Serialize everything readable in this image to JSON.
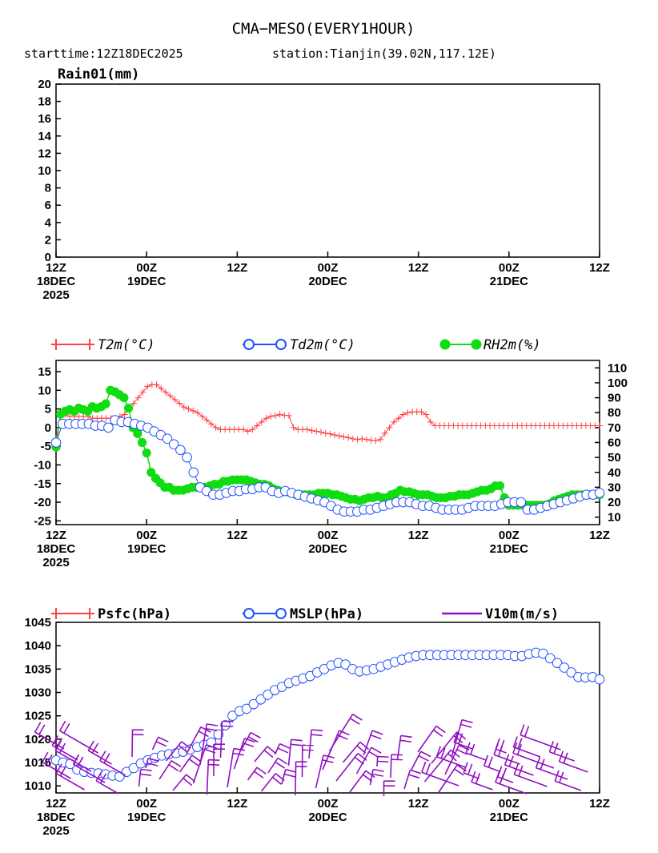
{
  "header": {
    "title": "CMA−MESO(EVERY1HOUR)",
    "subtitle_start": "starttime:12Z18DEC2025",
    "subtitle_station": "station:Tianjin(39.02N,117.12E)"
  },
  "colors": {
    "t2m": "#ff4040",
    "td2m": "#2050ff",
    "rh2m": "#10dd10",
    "psfc": "#ff4040",
    "mslp": "#2050ff",
    "wind": "#9010c0",
    "axis": "#000000"
  },
  "time_axis": {
    "hours": 72,
    "ticks": [
      {
        "h": 0,
        "l1": "12Z",
        "l2": "18DEC",
        "l3": "2025"
      },
      {
        "h": 12,
        "l1": "00Z",
        "l2": "19DEC",
        "l3": ""
      },
      {
        "h": 24,
        "l1": "12Z",
        "l2": "",
        "l3": ""
      },
      {
        "h": 36,
        "l1": "00Z",
        "l2": "20DEC",
        "l3": ""
      },
      {
        "h": 48,
        "l1": "12Z",
        "l2": "",
        "l3": ""
      },
      {
        "h": 60,
        "l1": "00Z",
        "l2": "21DEC",
        "l3": ""
      },
      {
        "h": 72,
        "l1": "12Z",
        "l2": "",
        "l3": ""
      }
    ]
  },
  "chart_data": [
    {
      "type": "line",
      "id": "rain",
      "title": "Rain01(mm)",
      "ylim": [
        0,
        20
      ],
      "yticks": [
        0,
        2,
        4,
        6,
        8,
        10,
        12,
        14,
        16,
        18,
        20
      ],
      "series": []
    },
    {
      "type": "line",
      "id": "temp",
      "ylim": [
        -26,
        18
      ],
      "yticks": [
        -25,
        -20,
        -15,
        -10,
        -5,
        0,
        5,
        10,
        15
      ],
      "y2lim": [
        5,
        115
      ],
      "y2ticks": [
        10,
        20,
        30,
        40,
        50,
        60,
        70,
        80,
        90,
        100,
        110
      ],
      "legend": [
        "T2m(°C)",
        "Td2m(°C)",
        "RH2m(%)"
      ],
      "series": [
        {
          "name": "T2m(°C)",
          "axis": "left",
          "marker": "plus",
          "values": [
            -3,
            3,
            3.5,
            3,
            3,
            3,
            3,
            3,
            2.5,
            2.5,
            2.5,
            2.5,
            2.5,
            2.5,
            3,
            3.5,
            5,
            6.5,
            8,
            9.5,
            11,
            11.5,
            11.5,
            10.5,
            9.5,
            8.5,
            7.5,
            6.5,
            5.5,
            5,
            4.5,
            4,
            3,
            2,
            1,
            0,
            -0.5,
            -0.5,
            -0.5,
            -0.5,
            -0.5,
            -0.5,
            -1,
            -0.5,
            0.5,
            1.5,
            2.5,
            3,
            3.2,
            3.5,
            3.3,
            3.2,
            0,
            -0.5,
            -0.5,
            -0.5,
            -0.8,
            -1,
            -1.2,
            -1.5,
            -1.7,
            -2,
            -2.2,
            -2.5,
            -2.7,
            -3,
            -3.2,
            -3,
            -3.2,
            -3.4,
            -3.5,
            -3.2,
            -1.5,
            0,
            1.5,
            2.5,
            3.5,
            4,
            4.2,
            4.2,
            4.2,
            3.5,
            1.5,
            0.5,
            0.5,
            0.5,
            0.5,
            0.5,
            0.5,
            0.5,
            0.5,
            0.5,
            0.5,
            0.5,
            0.5,
            0.5,
            0.5,
            0.5,
            0.5,
            0.5,
            0.5,
            0.5,
            0.5,
            0.5,
            0.5,
            0.5,
            0.5,
            0.5,
            0.5,
            0.5,
            0.5,
            0.5,
            0.5,
            0.5,
            0.5,
            0.5,
            0.5,
            0.5,
            0.5,
            0.5
          ]
        },
        {
          "name": "Td2m(°C)",
          "axis": "left",
          "marker": "circle",
          "values": [
            -4,
            1,
            1,
            1,
            1,
            1,
            0.5,
            0.5,
            0,
            2,
            1.5,
            1.5,
            1,
            0.5,
            0,
            -1,
            -2,
            -3,
            -4.5,
            -6,
            -8,
            -12,
            -16,
            -17,
            -18,
            -18,
            -17.5,
            -17,
            -17,
            -16.5,
            -16.5,
            -16,
            -16,
            -17,
            -17.5,
            -17,
            -17.5,
            -18,
            -18.5,
            -19,
            -19.5,
            -20,
            -21,
            -22,
            -22.5,
            -22.5,
            -22.5,
            -22,
            -22,
            -21.5,
            -21,
            -20.5,
            -20,
            -20,
            -20,
            -20.5,
            -21,
            -21,
            -21.5,
            -22,
            -22,
            -22,
            -22,
            -21.5,
            -21,
            -21,
            -21,
            -21,
            -20.5,
            -20,
            -20,
            -20,
            -22,
            -22,
            -21.5,
            -21,
            -20.5,
            -20,
            -19.5,
            -19,
            -18.5,
            -18,
            -18,
            -17.5
          ]
        },
        {
          "name": "RH2m(%)",
          "axis": "right",
          "marker": "dot",
          "values": [
            57,
            79,
            81,
            82,
            81,
            83,
            82,
            81,
            84,
            83,
            84,
            86,
            95,
            94,
            92,
            90,
            83,
            70,
            66,
            60,
            53,
            40,
            36,
            33,
            30,
            30,
            28,
            28,
            28,
            29,
            30,
            30,
            30,
            30,
            31,
            32,
            32,
            34,
            34,
            35,
            35,
            35,
            35,
            34,
            33,
            32,
            32,
            31,
            29,
            28,
            27,
            27,
            26,
            25,
            25,
            25,
            25,
            25,
            26,
            26,
            26,
            25,
            25,
            24,
            23,
            22,
            22,
            21,
            22,
            23,
            23,
            24,
            23,
            23,
            25,
            26,
            28,
            27,
            27,
            26,
            25,
            25,
            25,
            24,
            23,
            23,
            23,
            24,
            24,
            25,
            25,
            25,
            26,
            27,
            28,
            28,
            29,
            31,
            31,
            23,
            18,
            18,
            18,
            18,
            18,
            18,
            18,
            18,
            18,
            19,
            21,
            22,
            23,
            24,
            25,
            25,
            25,
            25,
            25,
            25,
            25
          ]
        }
      ]
    },
    {
      "type": "line",
      "id": "pressure",
      "ylim": [
        1008.5,
        1045
      ],
      "yticks": [
        1010,
        1015,
        1020,
        1025,
        1030,
        1035,
        1040,
        1045
      ],
      "legend": [
        "Psfc(hPa)",
        "MSLP(hPa)",
        "V10m(m/s)"
      ],
      "series": [
        {
          "name": "Psfc(hPa)",
          "marker": "plus",
          "values": [
            1015,
            1014.6,
            1014.2,
            1013.2,
            1012.8,
            1012.6,
            1012.4,
            1012.3,
            1012,
            1011.8,
            1012.6,
            1013.5,
            1014.5,
            1015.3,
            1015.8,
            1016.2,
            1016.5,
            1016.8,
            1017,
            1017.5,
            1018,
            1018.5,
            1019,
            1020.5,
            1022.5,
            1024.5,
            1025.5,
            1026,
            1027,
            1028,
            1029,
            1030,
            1030.8,
            1031.5,
            1032,
            1032.5,
            1033,
            1033.8,
            1034.5,
            1035.3,
            1036,
            1035.5,
            1034.5,
            1034,
            1034.3,
            1034.6,
            1035,
            1035.5,
            1036,
            1036.5,
            1037,
            1037.3,
            1037.5,
            1037.5,
            1037.6,
            1037.6,
            1037.6,
            1037.6,
            1037.6,
            1037.6,
            1037.6,
            1037.6,
            1037.6,
            1037.6,
            1037.6,
            1037.5,
            1037.5,
            1037.8,
            1038.2,
            1038,
            1037,
            1036,
            1035,
            1034,
            1033,
            1033,
            1033,
            1032.5
          ]
        },
        {
          "name": "MSLP(hPa)",
          "marker": "circle",
          "values": [
            1015.5,
            1015,
            1014.7,
            1013.5,
            1013,
            1012.8,
            1012.7,
            1012.5,
            1012.2,
            1012,
            1013,
            1013.8,
            1014.8,
            1015.5,
            1016,
            1016.5,
            1016.8,
            1017,
            1017.3,
            1017.8,
            1018.3,
            1018.8,
            1019.3,
            1021,
            1023,
            1025,
            1026,
            1026.5,
            1027.5,
            1028.5,
            1029.5,
            1030.5,
            1031.2,
            1032,
            1032.5,
            1033,
            1033.5,
            1034.3,
            1035,
            1035.8,
            1036.3,
            1036,
            1035,
            1034.5,
            1034.7,
            1035,
            1035.5,
            1036,
            1036.5,
            1037,
            1037.5,
            1037.8,
            1038,
            1038,
            1038,
            1038,
            1038,
            1038,
            1038,
            1038,
            1038,
            1038,
            1038,
            1038,
            1038,
            1037.8,
            1037.8,
            1038.2,
            1038.5,
            1038.3,
            1037.3,
            1036.3,
            1035.3,
            1034.3,
            1033.3,
            1033.2,
            1033.3,
            1032.8
          ]
        }
      ]
    }
  ]
}
